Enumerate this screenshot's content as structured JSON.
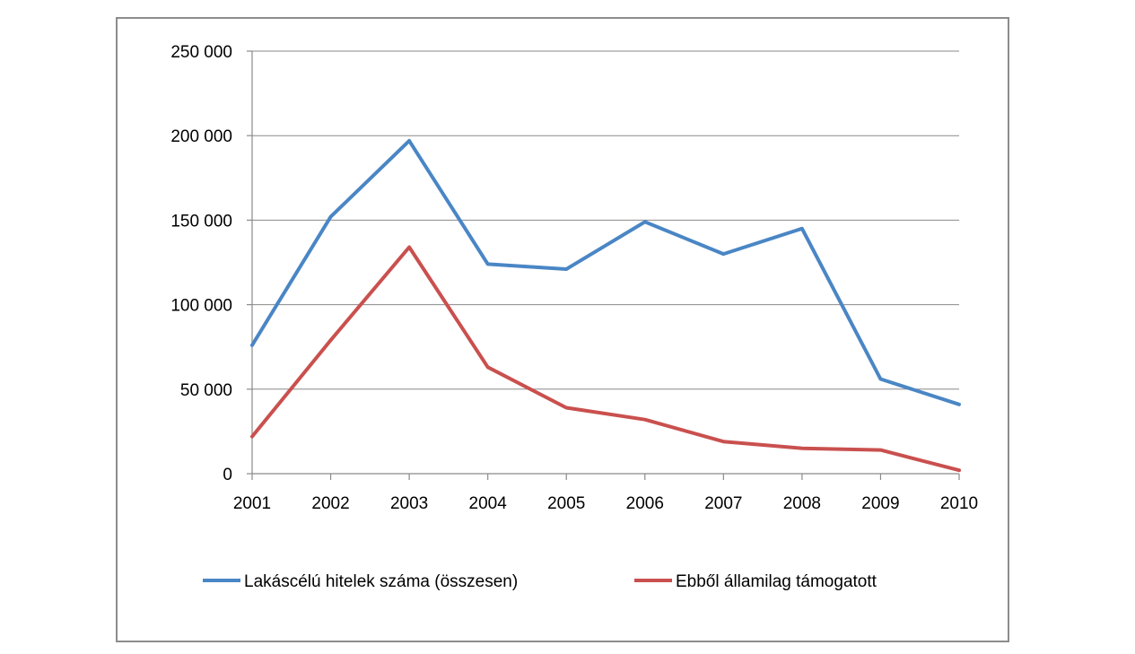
{
  "chart_data": {
    "type": "line",
    "title": "",
    "xlabel": "",
    "ylabel": "",
    "categories": [
      "2001",
      "2002",
      "2003",
      "2004",
      "2005",
      "2006",
      "2007",
      "2008",
      "2009",
      "2010"
    ],
    "ylim": [
      0,
      250000
    ],
    "yticks": [
      0,
      50000,
      100000,
      150000,
      200000,
      250000
    ],
    "ytick_labels": [
      "0",
      "50 000",
      "100 000",
      "150 000",
      "200 000",
      "250 000"
    ],
    "grid": true,
    "legend_position": "bottom",
    "series": [
      {
        "name": "Lakáscélú hitelek száma (összesen)",
        "color": "#4a86c5",
        "values": [
          76000,
          152000,
          197000,
          124000,
          121000,
          149000,
          130000,
          145000,
          56000,
          41000
        ]
      },
      {
        "name": "Ebből államilag támogatott",
        "color": "#c9504e",
        "values": [
          22000,
          79000,
          134000,
          63000,
          39000,
          32000,
          19000,
          15000,
          14000,
          2000
        ]
      }
    ]
  }
}
